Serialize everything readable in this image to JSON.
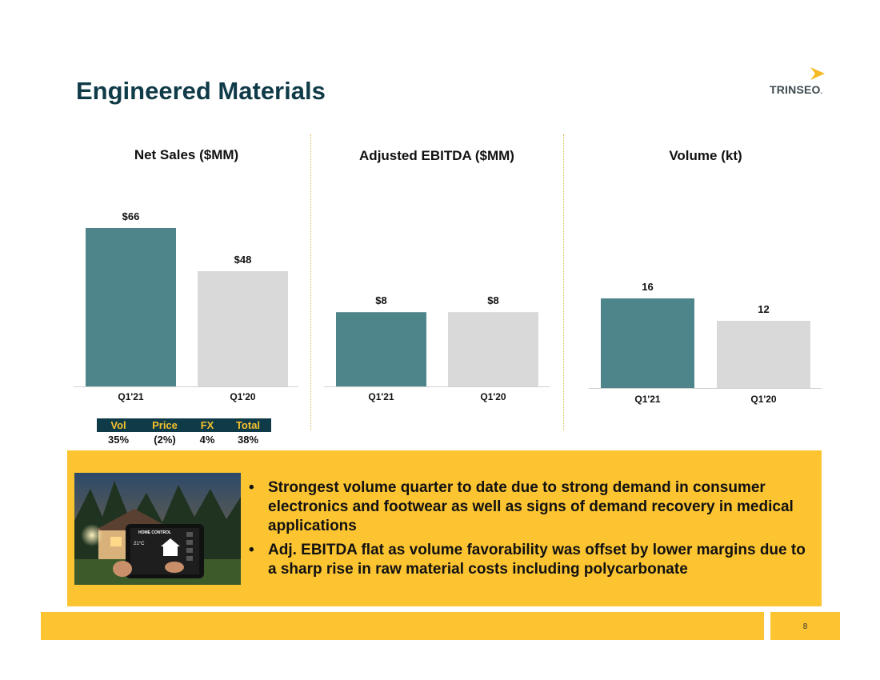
{
  "title": "Engineered Materials",
  "logo": {
    "text": "TRINSEO",
    "mark": "."
  },
  "colors": {
    "primary": "#4d858b",
    "secondary": "#d9d9d9",
    "accent": "#fcc431",
    "navy": "#0f3a47"
  },
  "chart_data": [
    {
      "type": "bar",
      "title": "Net Sales ($MM)",
      "categories": [
        "Q1'21",
        "Q1'20"
      ],
      "values": [
        66,
        48
      ],
      "labels": [
        "$66",
        "$48"
      ],
      "xlabel": "",
      "ylabel": "",
      "ylim": [
        0,
        70
      ],
      "grid": false
    },
    {
      "type": "bar",
      "title": "Adjusted EBITDA ($MM)",
      "categories": [
        "Q1'21",
        "Q1'20"
      ],
      "values": [
        8,
        8
      ],
      "labels": [
        "$8",
        "$8"
      ],
      "xlabel": "",
      "ylabel": "",
      "grid": false
    },
    {
      "type": "bar",
      "title": "Volume (kt)",
      "categories": [
        "Q1'21",
        "Q1'20"
      ],
      "values": [
        16,
        12
      ],
      "labels": [
        "16",
        "12"
      ],
      "xlabel": "",
      "ylabel": "",
      "ylim": [
        0,
        18
      ],
      "grid": false
    }
  ],
  "bridge": {
    "headers": [
      "Vol",
      "Price",
      "FX",
      "Total"
    ],
    "values": [
      "35%",
      "(2%)",
      "4%",
      "38%"
    ]
  },
  "bullets": [
    "Strongest volume quarter to date due to strong demand in consumer electronics and footwear as well as signs of demand recovery in medical applications",
    "Adj. EBITDA flat as volume favorability was offset by lower margins due to a sharp rise in raw material costs including polycarbonate"
  ],
  "photo": {
    "screen_title": "HOME CONTROL",
    "temperature": "21°C"
  },
  "page_number": "8"
}
